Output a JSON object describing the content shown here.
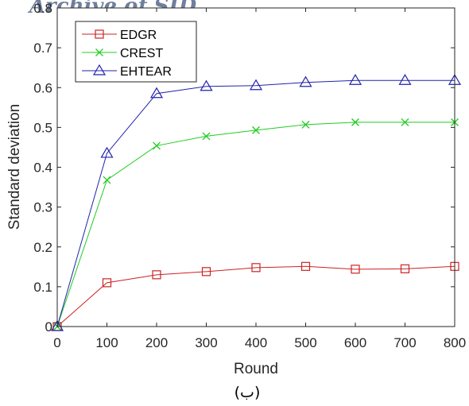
{
  "watermark": "Archive of SID",
  "caption": "(ب)",
  "chart_data": {
    "type": "line",
    "xlabel": "Round",
    "ylabel": "Standard deviation",
    "xlim": [
      0,
      800
    ],
    "ylim": [
      0,
      0.8
    ],
    "x_ticks": [
      "0",
      "100",
      "200",
      "300",
      "400",
      "500",
      "600",
      "700",
      "800"
    ],
    "y_ticks": [
      "0",
      "0.1",
      "0.2",
      "0.3",
      "0.4",
      "0.5",
      "0.6",
      "0.7",
      "0.8"
    ],
    "grid": false,
    "legend_position": "top-left",
    "x": [
      0,
      100,
      200,
      300,
      400,
      500,
      600,
      700,
      800
    ],
    "series": [
      {
        "name": "EDGR",
        "color": "#cc2222",
        "marker": "square",
        "values": [
          0.0,
          0.11,
          0.13,
          0.138,
          0.148,
          0.151,
          0.144,
          0.145,
          0.151
        ]
      },
      {
        "name": "CREST",
        "color": "#22cc22",
        "marker": "x",
        "values": [
          0.0,
          0.368,
          0.454,
          0.478,
          0.493,
          0.507,
          0.513,
          0.513,
          0.513
        ]
      },
      {
        "name": "EHTEAR",
        "color": "#2222aa",
        "marker": "triangle",
        "values": [
          0.0,
          0.435,
          0.585,
          0.603,
          0.605,
          0.613,
          0.618,
          0.618,
          0.618
        ]
      }
    ]
  }
}
